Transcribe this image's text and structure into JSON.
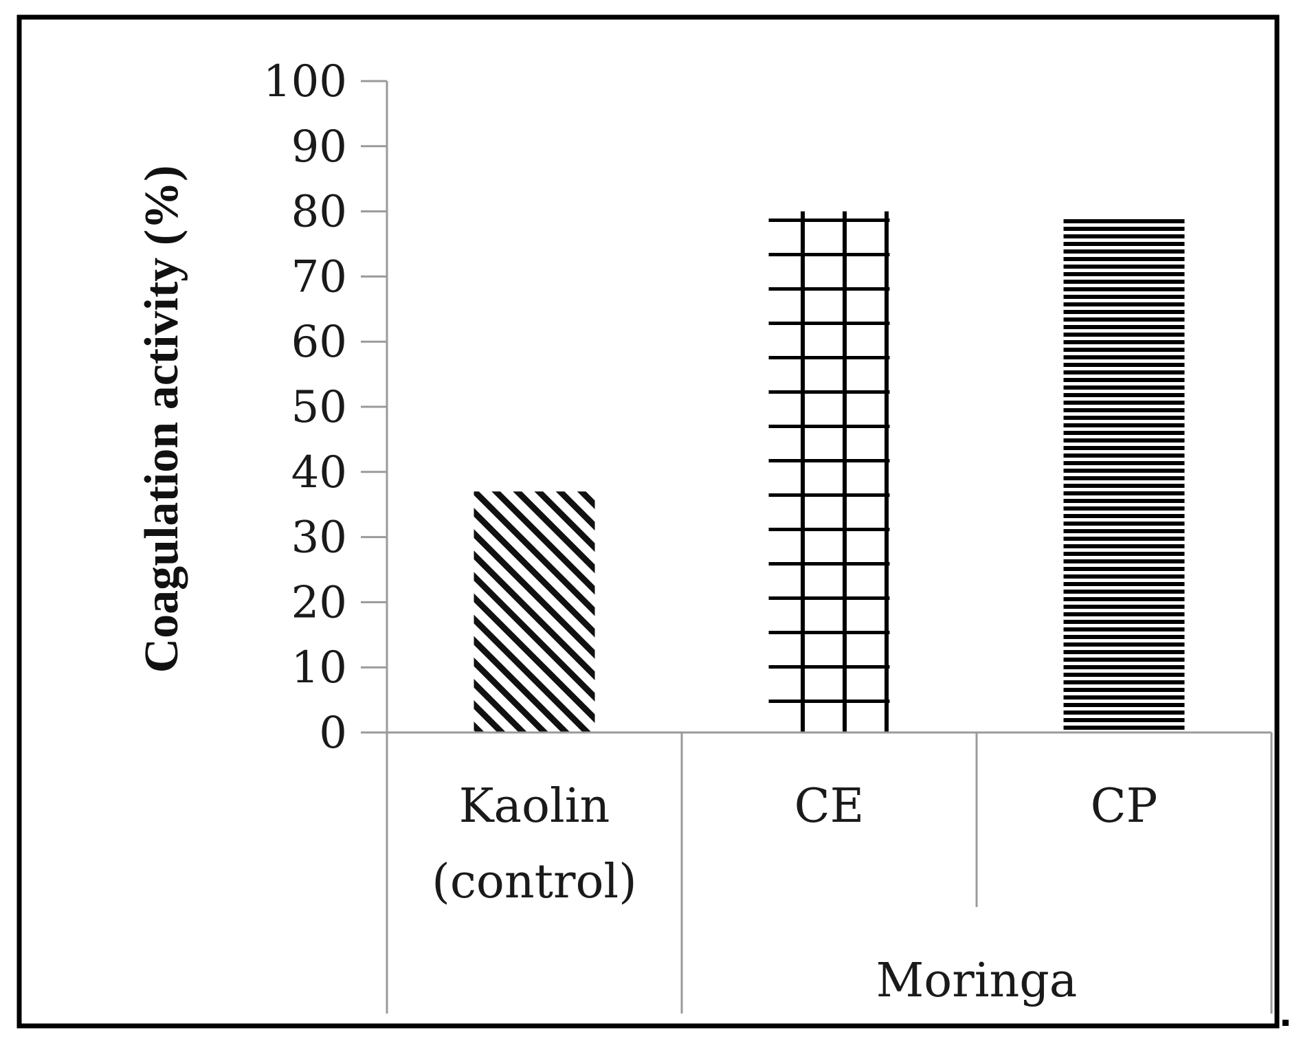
{
  "chart_data": {
    "type": "bar",
    "title": "",
    "xlabel": "",
    "ylabel": "Coagulation activity (%)",
    "ylim": [
      0,
      100
    ],
    "yticks": [
      0,
      10,
      20,
      30,
      40,
      50,
      60,
      70,
      80,
      90,
      100
    ],
    "categories": [
      "Kaolin (control)",
      "CE",
      "CP"
    ],
    "category_lines": [
      [
        "Kaolin",
        "(control)"
      ],
      [
        "CE"
      ],
      [
        "CP"
      ]
    ],
    "values": [
      37,
      80,
      79
    ],
    "patterns": [
      "diagonal-hatch",
      "grid",
      "horizontal-lines"
    ],
    "group_label": "Moringa",
    "grid": false,
    "legend": "none"
  }
}
